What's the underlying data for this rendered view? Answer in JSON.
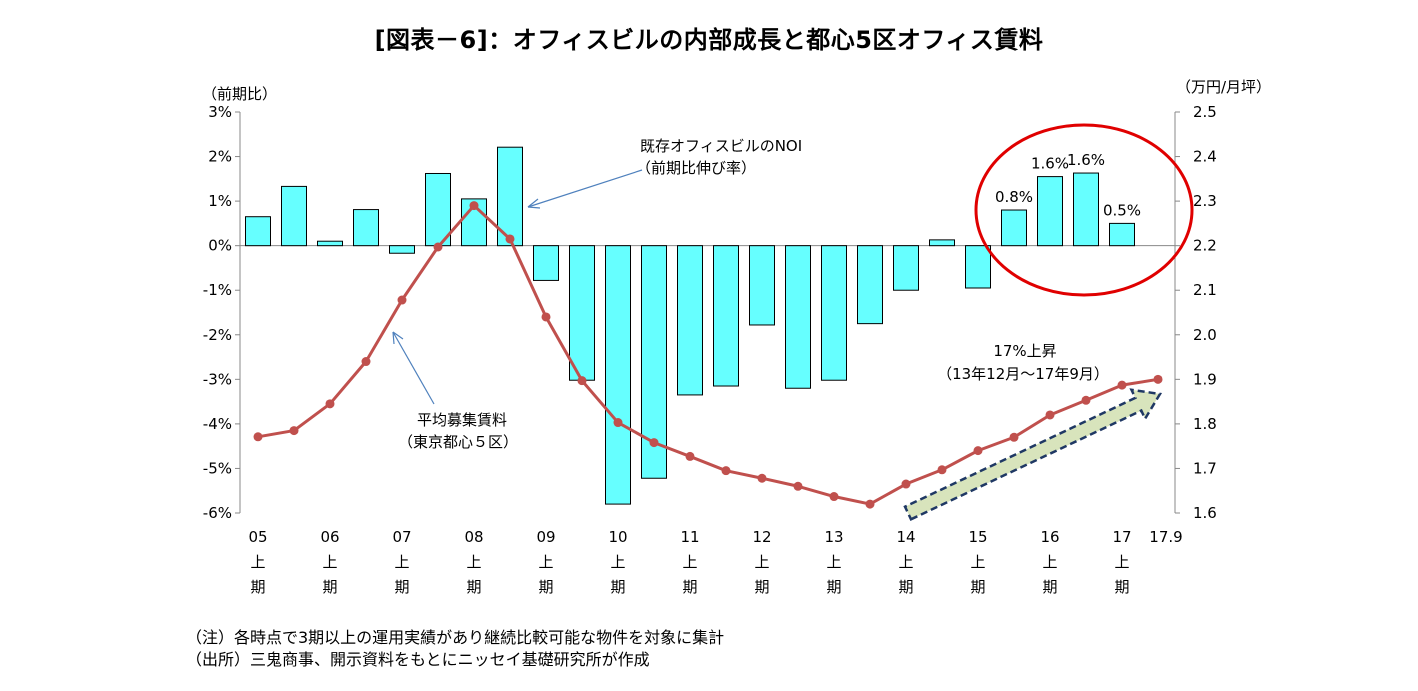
{
  "title": "[図表－6]：オフィスビルの内部成長と都心5区オフィス賃料",
  "left_unit": "（前期比）",
  "right_unit": "（万円/月坪）",
  "notes": [
    "（注）各時点で3期以上の運用実績があり継続比較可能な物件を対象に集計",
    "（出所）三鬼商事、開示資料をもとにニッセイ基礎研究所が作成"
  ],
  "chart_data": {
    "type": "bar+line",
    "title": "[図表－6]：オフィスビルの内部成長と都心5区オフィス賃料",
    "y_left": {
      "unit_label": "（前期比）",
      "range": [
        -6,
        3
      ],
      "ticks": [
        "3%",
        "2%",
        "1%",
        "0%",
        "-1%",
        "-2%",
        "-3%",
        "-4%",
        "-5%",
        "-6%"
      ]
    },
    "y_right": {
      "unit_label": "（万円/月坪）",
      "range": [
        1.6,
        2.5
      ],
      "ticks": [
        "2.5",
        "2.4",
        "2.3",
        "2.2",
        "2.1",
        "2.0",
        "1.9",
        "1.8",
        "1.7",
        "1.6"
      ]
    },
    "x_labels": [
      {
        "year": "05",
        "half": "上",
        "term": "期"
      },
      {
        "year": "06",
        "half": "上",
        "term": "期"
      },
      {
        "year": "07",
        "half": "上",
        "term": "期"
      },
      {
        "year": "08",
        "half": "上",
        "term": "期"
      },
      {
        "year": "09",
        "half": "上",
        "term": "期"
      },
      {
        "year": "10",
        "half": "上",
        "term": "期"
      },
      {
        "year": "11",
        "half": "上",
        "term": "期"
      },
      {
        "year": "12",
        "half": "上",
        "term": "期"
      },
      {
        "year": "13",
        "half": "上",
        "term": "期"
      },
      {
        "year": "14",
        "half": "上",
        "term": "期"
      },
      {
        "year": "15",
        "half": "上",
        "term": "期"
      },
      {
        "year": "16",
        "half": "上",
        "term": "期"
      },
      {
        "year": "17",
        "half": "上",
        "term": "期"
      }
    ],
    "x_last_label": "17.9",
    "bar_series": {
      "name": "既存オフィスビルのNOI（前期比伸び率）",
      "axis": "left",
      "color": "#66FFFF",
      "values": [
        0.65,
        1.33,
        0.1,
        0.81,
        -0.17,
        1.62,
        1.05,
        2.21,
        -0.78,
        -3.02,
        -5.8,
        -5.22,
        -3.35,
        -3.15,
        -1.78,
        -3.2,
        -3.02,
        -1.75,
        -1.0,
        0.13,
        -0.95,
        0.8,
        1.55,
        1.63,
        0.5
      ]
    },
    "bar_labels": [
      {
        "index": 21,
        "text": "0.8%"
      },
      {
        "index": 22,
        "text": "1.6%"
      },
      {
        "index": 23,
        "text": "1.6%"
      },
      {
        "index": 24,
        "text": "0.5%"
      }
    ],
    "line_series": {
      "name": "平均募集賃料（東京都心５区）",
      "axis": "right",
      "color": "#C0504D",
      "values": [
        1.771,
        1.785,
        1.845,
        1.94,
        2.078,
        2.197,
        2.29,
        2.215,
        2.04,
        1.897,
        1.803,
        1.758,
        1.727,
        1.695,
        1.678,
        1.66,
        1.637,
        1.62,
        1.665,
        1.697,
        1.74,
        1.77,
        1.82,
        1.853,
        1.887,
        1.9
      ]
    },
    "annotations": {
      "noi_label": [
        "既存オフィスビルのNOI",
        "（前期比伸び率）"
      ],
      "rent_label": [
        "平均募集賃料",
        "（東京都心５区）"
      ],
      "rise_label": [
        "17%上昇",
        "（13年12月～17年9月）"
      ]
    },
    "highlight": {
      "circle_color": "#E00000",
      "arrow_fill": "#D8E4BC",
      "arrow_border": "#1F3864"
    }
  }
}
